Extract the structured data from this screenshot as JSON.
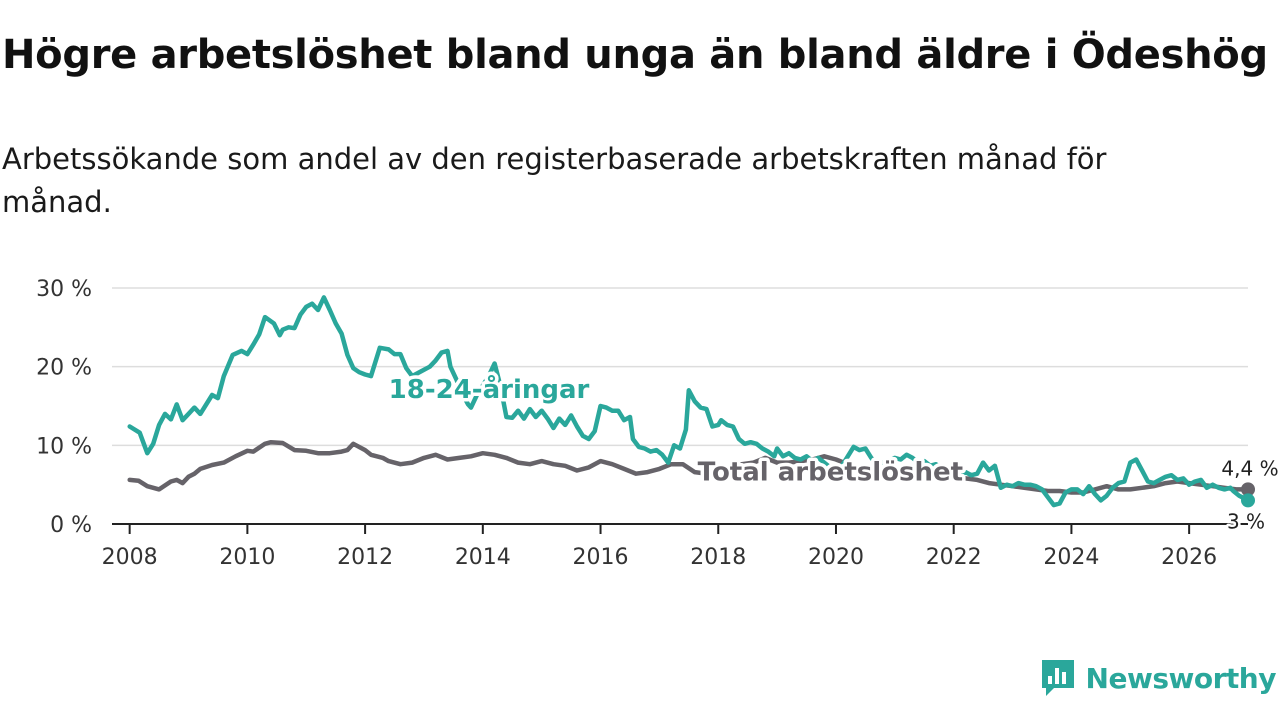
{
  "title": "Högre arbetslöshet bland unga än bland äldre i Ödeshög",
  "subtitle": "Arbetssökande som andel av den registerbaserade arbetskraften månad för månad.",
  "brand": {
    "name": "Newsworthy",
    "icon": "newsworthy-logo-icon"
  },
  "colors": {
    "youth": "#2aa79b",
    "total": "#666369",
    "grid": "#dddddd",
    "axis": "#222222"
  },
  "chart_data": {
    "type": "line",
    "title": "Högre arbetslöshet bland unga än bland äldre i Ödeshög",
    "xlabel": "",
    "ylabel": "",
    "xlim": [
      2007.7,
      2027.0
    ],
    "ylim": [
      0,
      30
    ],
    "x_ticks": [
      2008,
      2010,
      2012,
      2014,
      2016,
      2018,
      2020,
      2022,
      2024,
      2026
    ],
    "x_tick_labels": [
      "2008",
      "2010",
      "2012",
      "2014",
      "2016",
      "2018",
      "2020",
      "2022",
      "2024",
      "2026"
    ],
    "y_ticks": [
      0,
      10,
      20,
      30
    ],
    "y_tick_labels": [
      "0 %",
      "10 %",
      "20 %",
      "30 %"
    ],
    "grid": true,
    "series": [
      {
        "name": "18-24-åringar",
        "key": "youth",
        "end_label": "3 %",
        "points": [
          [
            2008.0,
            12.4
          ],
          [
            2008.17,
            11.6
          ],
          [
            2008.3,
            9.0
          ],
          [
            2008.4,
            10.2
          ],
          [
            2008.5,
            12.6
          ],
          [
            2008.6,
            14.0
          ],
          [
            2008.7,
            13.3
          ],
          [
            2008.8,
            15.2
          ],
          [
            2008.9,
            13.2
          ],
          [
            2009.0,
            14.0
          ],
          [
            2009.1,
            14.8
          ],
          [
            2009.2,
            14.0
          ],
          [
            2009.4,
            16.4
          ],
          [
            2009.5,
            16.0
          ],
          [
            2009.6,
            18.8
          ],
          [
            2009.75,
            21.5
          ],
          [
            2009.9,
            22.0
          ],
          [
            2010.0,
            21.6
          ],
          [
            2010.1,
            22.8
          ],
          [
            2010.2,
            24.1
          ],
          [
            2010.3,
            26.3
          ],
          [
            2010.45,
            25.5
          ],
          [
            2010.55,
            24.0
          ],
          [
            2010.6,
            24.7
          ],
          [
            2010.7,
            25.0
          ],
          [
            2010.8,
            24.9
          ],
          [
            2010.9,
            26.6
          ],
          [
            2011.0,
            27.6
          ],
          [
            2011.1,
            28.0
          ],
          [
            2011.2,
            27.2
          ],
          [
            2011.3,
            28.8
          ],
          [
            2011.4,
            27.2
          ],
          [
            2011.5,
            25.5
          ],
          [
            2011.6,
            24.2
          ],
          [
            2011.7,
            21.5
          ],
          [
            2011.8,
            19.8
          ],
          [
            2011.9,
            19.3
          ],
          [
            2012.0,
            19.0
          ],
          [
            2012.1,
            18.8
          ],
          [
            2012.25,
            22.4
          ],
          [
            2012.4,
            22.2
          ],
          [
            2012.5,
            21.6
          ],
          [
            2012.6,
            21.6
          ],
          [
            2012.7,
            19.8
          ],
          [
            2012.8,
            18.8
          ],
          [
            2012.95,
            19.4
          ],
          [
            2013.1,
            20.0
          ],
          [
            2013.2,
            20.8
          ],
          [
            2013.3,
            21.8
          ],
          [
            2013.4,
            22.0
          ],
          [
            2013.45,
            20.0
          ],
          [
            2013.55,
            18.4
          ],
          [
            2013.65,
            16.6
          ],
          [
            2013.75,
            15.2
          ],
          [
            2013.8,
            14.8
          ],
          [
            2013.9,
            16.4
          ],
          [
            2014.0,
            17.6
          ],
          [
            2014.1,
            18.8
          ],
          [
            2014.2,
            20.4
          ],
          [
            2014.3,
            17.5
          ],
          [
            2014.4,
            13.6
          ],
          [
            2014.5,
            13.5
          ],
          [
            2014.6,
            14.4
          ],
          [
            2014.7,
            13.4
          ],
          [
            2014.8,
            14.6
          ],
          [
            2014.9,
            13.6
          ],
          [
            2015.0,
            14.4
          ],
          [
            2015.1,
            13.4
          ],
          [
            2015.2,
            12.2
          ],
          [
            2015.3,
            13.4
          ],
          [
            2015.4,
            12.6
          ],
          [
            2015.5,
            13.8
          ],
          [
            2015.6,
            12.4
          ],
          [
            2015.7,
            11.2
          ],
          [
            2015.8,
            10.8
          ],
          [
            2015.9,
            11.8
          ],
          [
            2016.0,
            15.0
          ],
          [
            2016.1,
            14.8
          ],
          [
            2016.2,
            14.4
          ],
          [
            2016.3,
            14.4
          ],
          [
            2016.4,
            13.2
          ],
          [
            2016.5,
            13.6
          ],
          [
            2016.55,
            10.8
          ],
          [
            2016.65,
            9.8
          ],
          [
            2016.75,
            9.6
          ],
          [
            2016.85,
            9.2
          ],
          [
            2016.95,
            9.4
          ],
          [
            2017.05,
            8.8
          ],
          [
            2017.15,
            7.8
          ],
          [
            2017.25,
            10.0
          ],
          [
            2017.35,
            9.6
          ],
          [
            2017.45,
            12.0
          ],
          [
            2017.5,
            17.0
          ],
          [
            2017.6,
            15.6
          ],
          [
            2017.7,
            14.8
          ],
          [
            2017.8,
            14.6
          ],
          [
            2017.9,
            12.4
          ],
          [
            2018.0,
            12.6
          ],
          [
            2018.05,
            13.2
          ],
          [
            2018.15,
            12.6
          ],
          [
            2018.25,
            12.4
          ],
          [
            2018.35,
            10.8
          ],
          [
            2018.45,
            10.2
          ],
          [
            2018.55,
            10.4
          ],
          [
            2018.65,
            10.2
          ],
          [
            2018.75,
            9.6
          ],
          [
            2018.85,
            9.2
          ],
          [
            2018.95,
            8.6
          ],
          [
            2019.0,
            9.6
          ],
          [
            2019.1,
            8.6
          ],
          [
            2019.2,
            9.0
          ],
          [
            2019.3,
            8.4
          ],
          [
            2019.4,
            8.2
          ],
          [
            2019.5,
            8.6
          ],
          [
            2019.6,
            8.0
          ],
          [
            2019.7,
            8.4
          ],
          [
            2019.8,
            7.8
          ],
          [
            2019.9,
            7.2
          ],
          [
            2020.0,
            7.4
          ],
          [
            2020.1,
            7.4
          ],
          [
            2020.2,
            8.6
          ],
          [
            2020.3,
            9.8
          ],
          [
            2020.4,
            9.4
          ],
          [
            2020.5,
            9.6
          ],
          [
            2020.6,
            8.4
          ],
          [
            2020.7,
            7.6
          ],
          [
            2020.8,
            7.8
          ],
          [
            2020.9,
            8.0
          ],
          [
            2021.0,
            8.4
          ],
          [
            2021.1,
            8.2
          ],
          [
            2021.2,
            8.8
          ],
          [
            2021.3,
            8.4
          ],
          [
            2021.4,
            7.8
          ],
          [
            2021.5,
            8.0
          ],
          [
            2021.6,
            7.4
          ],
          [
            2021.7,
            7.6
          ],
          [
            2021.8,
            7.0
          ],
          [
            2021.9,
            6.4
          ],
          [
            2022.0,
            6.2
          ],
          [
            2022.1,
            6.0
          ],
          [
            2022.2,
            6.6
          ],
          [
            2022.3,
            6.2
          ],
          [
            2022.4,
            6.4
          ],
          [
            2022.5,
            7.8
          ],
          [
            2022.6,
            6.8
          ],
          [
            2022.7,
            7.4
          ],
          [
            2022.8,
            4.6
          ],
          [
            2022.9,
            5.0
          ],
          [
            2023.0,
            4.8
          ],
          [
            2023.1,
            5.2
          ],
          [
            2023.2,
            5.0
          ],
          [
            2023.3,
            5.0
          ],
          [
            2023.4,
            4.8
          ],
          [
            2023.5,
            4.4
          ],
          [
            2023.6,
            3.4
          ],
          [
            2023.7,
            2.4
          ],
          [
            2023.8,
            2.6
          ],
          [
            2023.9,
            4.0
          ],
          [
            2024.0,
            4.4
          ],
          [
            2024.1,
            4.4
          ],
          [
            2024.2,
            3.8
          ],
          [
            2024.3,
            4.8
          ],
          [
            2024.4,
            3.8
          ],
          [
            2024.5,
            3.0
          ],
          [
            2024.6,
            3.6
          ],
          [
            2024.7,
            4.6
          ],
          [
            2024.8,
            5.2
          ],
          [
            2024.9,
            5.4
          ],
          [
            2025.0,
            7.8
          ],
          [
            2025.1,
            8.2
          ],
          [
            2025.2,
            6.8
          ],
          [
            2025.3,
            5.4
          ],
          [
            2025.4,
            5.2
          ],
          [
            2025.5,
            5.6
          ],
          [
            2025.6,
            6.0
          ],
          [
            2025.7,
            6.2
          ],
          [
            2025.8,
            5.6
          ],
          [
            2025.9,
            5.8
          ],
          [
            2026.0,
            5.0
          ],
          [
            2026.1,
            5.4
          ],
          [
            2026.2,
            5.6
          ],
          [
            2026.3,
            4.6
          ],
          [
            2026.4,
            5.0
          ],
          [
            2026.5,
            4.6
          ],
          [
            2026.6,
            4.4
          ],
          [
            2026.7,
            4.6
          ],
          [
            2026.75,
            4.2
          ],
          [
            2026.85,
            3.6
          ],
          [
            2026.95,
            3.2
          ],
          [
            2027.0,
            3.0
          ]
        ]
      },
      {
        "name": "Total arbetslöshet",
        "key": "total",
        "end_label": "4,4 %",
        "points": [
          [
            2008.0,
            5.6
          ],
          [
            2008.15,
            5.5
          ],
          [
            2008.3,
            4.8
          ],
          [
            2008.5,
            4.4
          ],
          [
            2008.7,
            5.4
          ],
          [
            2008.8,
            5.6
          ],
          [
            2008.9,
            5.2
          ],
          [
            2009.0,
            6.0
          ],
          [
            2009.1,
            6.4
          ],
          [
            2009.2,
            7.0
          ],
          [
            2009.4,
            7.5
          ],
          [
            2009.6,
            7.8
          ],
          [
            2009.8,
            8.6
          ],
          [
            2010.0,
            9.3
          ],
          [
            2010.1,
            9.2
          ],
          [
            2010.3,
            10.2
          ],
          [
            2010.4,
            10.4
          ],
          [
            2010.6,
            10.3
          ],
          [
            2010.8,
            9.4
          ],
          [
            2011.0,
            9.3
          ],
          [
            2011.2,
            9.0
          ],
          [
            2011.4,
            9.0
          ],
          [
            2011.6,
            9.2
          ],
          [
            2011.7,
            9.4
          ],
          [
            2011.8,
            10.2
          ],
          [
            2012.0,
            9.4
          ],
          [
            2012.1,
            8.8
          ],
          [
            2012.3,
            8.4
          ],
          [
            2012.4,
            8.0
          ],
          [
            2012.6,
            7.6
          ],
          [
            2012.8,
            7.8
          ],
          [
            2013.0,
            8.4
          ],
          [
            2013.2,
            8.8
          ],
          [
            2013.4,
            8.2
          ],
          [
            2013.6,
            8.4
          ],
          [
            2013.8,
            8.6
          ],
          [
            2014.0,
            9.0
          ],
          [
            2014.2,
            8.8
          ],
          [
            2014.4,
            8.4
          ],
          [
            2014.6,
            7.8
          ],
          [
            2014.8,
            7.6
          ],
          [
            2015.0,
            8.0
          ],
          [
            2015.2,
            7.6
          ],
          [
            2015.4,
            7.4
          ],
          [
            2015.6,
            6.8
          ],
          [
            2015.8,
            7.2
          ],
          [
            2016.0,
            8.0
          ],
          [
            2016.2,
            7.6
          ],
          [
            2016.4,
            7.0
          ],
          [
            2016.6,
            6.4
          ],
          [
            2016.8,
            6.6
          ],
          [
            2017.0,
            7.0
          ],
          [
            2017.2,
            7.6
          ],
          [
            2017.4,
            7.6
          ],
          [
            2017.6,
            6.6
          ],
          [
            2017.8,
            6.4
          ],
          [
            2018.0,
            6.6
          ],
          [
            2018.2,
            7.0
          ],
          [
            2018.4,
            7.6
          ],
          [
            2018.6,
            7.8
          ],
          [
            2018.8,
            8.4
          ],
          [
            2019.0,
            7.8
          ],
          [
            2019.2,
            7.8
          ],
          [
            2019.4,
            8.0
          ],
          [
            2019.6,
            8.2
          ],
          [
            2019.8,
            8.6
          ],
          [
            2020.0,
            8.2
          ],
          [
            2020.2,
            7.6
          ],
          [
            2020.4,
            7.2
          ],
          [
            2020.6,
            7.0
          ],
          [
            2020.8,
            6.8
          ],
          [
            2021.0,
            6.6
          ],
          [
            2021.2,
            6.8
          ],
          [
            2021.4,
            7.0
          ],
          [
            2021.6,
            6.6
          ],
          [
            2021.8,
            6.4
          ],
          [
            2022.0,
            6.2
          ],
          [
            2022.2,
            5.8
          ],
          [
            2022.4,
            5.6
          ],
          [
            2022.6,
            5.2
          ],
          [
            2022.8,
            5.0
          ],
          [
            2023.0,
            4.8
          ],
          [
            2023.2,
            4.6
          ],
          [
            2023.4,
            4.4
          ],
          [
            2023.6,
            4.2
          ],
          [
            2023.8,
            4.2
          ],
          [
            2024.0,
            4.0
          ],
          [
            2024.2,
            4.0
          ],
          [
            2024.4,
            4.4
          ],
          [
            2024.6,
            4.8
          ],
          [
            2024.8,
            4.4
          ],
          [
            2025.0,
            4.4
          ],
          [
            2025.2,
            4.6
          ],
          [
            2025.4,
            4.8
          ],
          [
            2025.6,
            5.2
          ],
          [
            2025.8,
            5.4
          ],
          [
            2026.0,
            5.2
          ],
          [
            2026.2,
            5.0
          ],
          [
            2026.4,
            4.8
          ],
          [
            2026.6,
            4.6
          ],
          [
            2026.8,
            4.4
          ],
          [
            2027.0,
            4.4
          ]
        ]
      }
    ]
  }
}
